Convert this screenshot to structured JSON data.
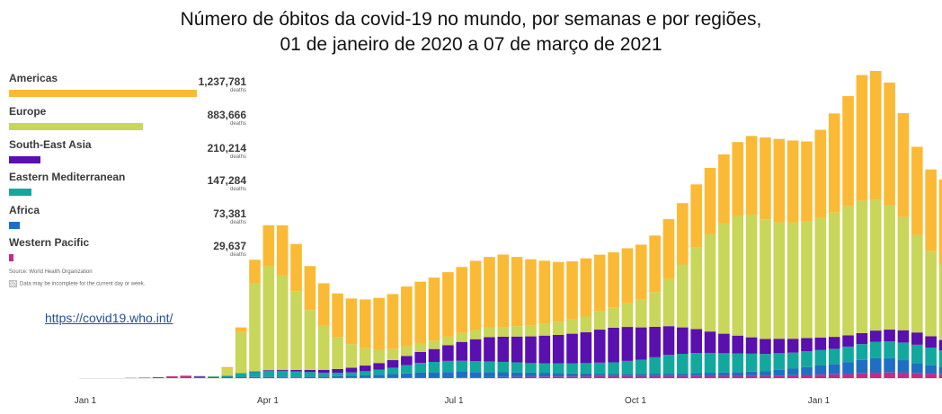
{
  "title_line1": "Número de óbitos da covid-19 no mundo, por semanas e por regiões,",
  "title_line2": "01 de janeiro de 2020 a 07 de março de 2021",
  "url": "https://covid19.who.int/",
  "source": "Source: World Health Organization",
  "note": "Data may be incomplete for the current day or week.",
  "legend": [
    {
      "name": "Americas",
      "value": "1,237,781",
      "unit": "deaths",
      "color": "#FBBA35"
    },
    {
      "name": "Europe",
      "value": "883,666",
      "unit": "deaths",
      "color": "#C8D65A"
    },
    {
      "name": "South-East Asia",
      "value": "210,214",
      "unit": "deaths",
      "color": "#5A0FAF"
    },
    {
      "name": "Eastern Mediterranean",
      "value": "147,284",
      "unit": "deaths",
      "color": "#13A89E"
    },
    {
      "name": "Africa",
      "value": "73,381",
      "unit": "deaths",
      "color": "#1E6FC4"
    },
    {
      "name": "Western Pacific",
      "value": "29,637",
      "unit": "deaths",
      "color": "#C52A8B"
    }
  ],
  "chart_data": {
    "type": "bar",
    "stacked": true,
    "x_tick_labels": [
      "Jan 1",
      "Apr 1",
      "Jul 1",
      "Oct 1",
      "Jan 1"
    ],
    "y_axis": "none",
    "last_bar_hatched": true,
    "series": [
      {
        "name": "Western Pacific",
        "values": [
          0,
          0,
          0,
          80,
          150,
          300,
          550,
          750,
          600,
          400,
          350,
          300,
          350,
          350,
          250,
          200,
          150,
          120,
          100,
          100,
          80,
          80,
          100,
          100,
          120,
          130,
          150,
          200,
          250,
          300,
          350,
          400,
          450,
          500,
          500,
          500,
          550,
          600,
          600,
          650,
          600,
          600,
          600,
          600,
          650,
          700,
          700,
          700,
          750,
          750,
          800,
          900,
          1000,
          1100,
          1200,
          1300,
          1500,
          1700,
          1800,
          1700,
          1500,
          1400,
          1200,
          1100
        ]
      },
      {
        "name": "Africa",
        "values": [
          0,
          0,
          0,
          0,
          0,
          0,
          0,
          0,
          20,
          30,
          60,
          100,
          150,
          200,
          250,
          300,
          350,
          400,
          500,
          600,
          800,
          1000,
          1200,
          1400,
          1600,
          1700,
          1800,
          1800,
          1700,
          1600,
          1500,
          1400,
          1300,
          1200,
          1100,
          1000,
          900,
          800,
          700,
          700,
          700,
          800,
          800,
          800,
          900,
          1000,
          1100,
          1200,
          1300,
          1500,
          1800,
          2100,
          2500,
          2900,
          3300,
          3800,
          4300,
          4600,
          4500,
          4000,
          3300,
          2700,
          2400,
          2200
        ]
      },
      {
        "name": "Eastern Mediterranean",
        "values": [
          0,
          0,
          0,
          0,
          0,
          0,
          0,
          0,
          0,
          50,
          300,
          1200,
          1500,
          1800,
          1700,
          1600,
          1400,
          1200,
          1100,
          1100,
          1300,
          1600,
          2000,
          2600,
          3100,
          3300,
          3500,
          3500,
          3400,
          3400,
          3300,
          3200,
          3000,
          3000,
          3100,
          3200,
          3300,
          3500,
          3700,
          4100,
          4500,
          5200,
          6000,
          6300,
          6400,
          6300,
          6100,
          5900,
          5700,
          5400,
          5300,
          5100,
          5000,
          4900,
          4800,
          4900,
          5000,
          5200,
          5400,
          5600,
          5800,
          5600,
          5200,
          5000
        ]
      },
      {
        "name": "South-East Asia",
        "values": [
          0,
          0,
          0,
          0,
          0,
          0,
          0,
          0,
          0,
          0,
          0,
          0,
          100,
          200,
          350,
          500,
          700,
          900,
          1200,
          1500,
          1800,
          2100,
          2400,
          2900,
          3500,
          4100,
          5000,
          6000,
          7000,
          7700,
          8000,
          8200,
          8500,
          8800,
          9000,
          9400,
          9800,
          10500,
          11000,
          10800,
          10300,
          9700,
          9100,
          8400,
          7600,
          6800,
          6200,
          5700,
          5200,
          4800,
          4600,
          4400,
          4200,
          4000,
          3800,
          3600,
          3500,
          3600,
          3700,
          3900,
          3900,
          3600,
          3300,
          3000
        ]
      },
      {
        "name": "Europe",
        "values": [
          0,
          0,
          0,
          0,
          0,
          0,
          0,
          0,
          0,
          150,
          2300,
          13000,
          28000,
          33000,
          30000,
          25000,
          19000,
          14000,
          10000,
          7500,
          5500,
          4200,
          3500,
          3100,
          2800,
          2700,
          2700,
          2800,
          2900,
          3000,
          3100,
          3300,
          3500,
          3800,
          4200,
          4500,
          5000,
          5800,
          6500,
          7500,
          8800,
          11000,
          15000,
          20000,
          26000,
          31000,
          35000,
          38000,
          39000,
          38000,
          37000,
          37000,
          37000,
          38000,
          39500,
          41000,
          42000,
          41500,
          39500,
          36000,
          31000,
          27000,
          24000,
          20000
        ]
      },
      {
        "name": "Americas",
        "values": [
          0,
          0,
          0,
          0,
          0,
          0,
          0,
          0,
          0,
          0,
          500,
          1500,
          7500,
          13000,
          16000,
          15000,
          14000,
          13500,
          14000,
          14500,
          15500,
          16500,
          17500,
          19000,
          19500,
          20000,
          20500,
          21000,
          22000,
          22500,
          23000,
          22000,
          21000,
          20000,
          19000,
          18500,
          18500,
          18000,
          17500,
          17500,
          17500,
          18000,
          19000,
          19500,
          20000,
          21000,
          22000,
          23500,
          25000,
          26000,
          26500,
          26000,
          25500,
          28000,
          31500,
          35000,
          40000,
          41000,
          39000,
          33000,
          28000,
          26000,
          27000,
          21000
        ]
      }
    ]
  }
}
